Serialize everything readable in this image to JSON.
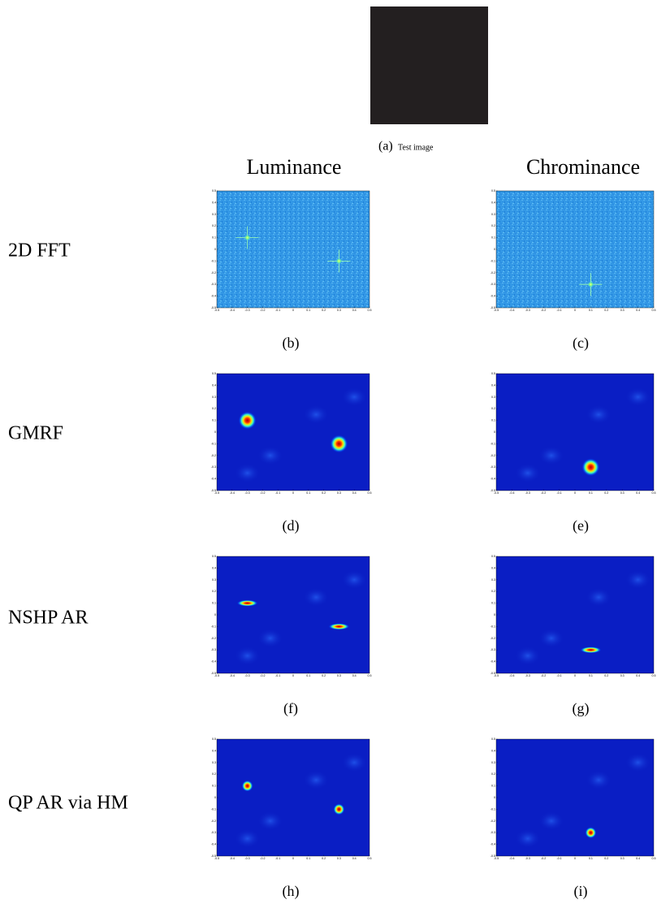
{
  "figure": {
    "test_image_caption": {
      "label": "(a)",
      "text": "Test image"
    },
    "column_headers": [
      "Luminance",
      "Chrominance"
    ],
    "axis_ticks": [
      -0.5,
      -0.4,
      -0.3,
      -0.2,
      -0.1,
      0,
      0.1,
      0.2,
      0.3,
      0.4,
      0.5
    ],
    "rows": [
      {
        "label": "2D FFT",
        "panels": [
          {
            "caption": "(b)",
            "peaks": [
              [
                -0.3,
                0.1
              ],
              [
                0.3,
                -0.1
              ]
            ]
          },
          {
            "caption": "(c)",
            "peaks": [
              [
                0.1,
                -0.3
              ]
            ]
          }
        ]
      },
      {
        "label": "GMRF",
        "panels": [
          {
            "caption": "(d)",
            "peaks": [
              [
                -0.3,
                0.1
              ],
              [
                0.3,
                -0.1
              ]
            ]
          },
          {
            "caption": "(e)",
            "peaks": [
              [
                0.1,
                -0.3
              ]
            ]
          }
        ]
      },
      {
        "label": "NSHP AR",
        "panels": [
          {
            "caption": "(f)",
            "peaks": [
              [
                -0.3,
                0.1
              ],
              [
                0.3,
                -0.1
              ]
            ]
          },
          {
            "caption": "(g)",
            "peaks": [
              [
                0.1,
                -0.3
              ]
            ]
          }
        ]
      },
      {
        "label": "QP AR via HM",
        "panels": [
          {
            "caption": "(h)",
            "peaks": [
              [
                -0.3,
                0.1
              ],
              [
                0.3,
                -0.1
              ]
            ]
          },
          {
            "caption": "(i)",
            "peaks": [
              [
                0.1,
                -0.3
              ]
            ]
          }
        ]
      }
    ]
  }
}
